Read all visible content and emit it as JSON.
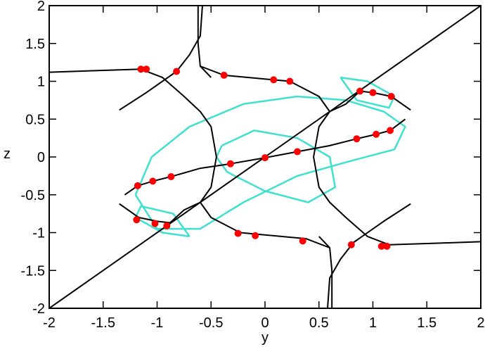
{
  "chart_data": {
    "type": "scatter",
    "x_label": "y",
    "y_label": "z",
    "xlim": [
      -2,
      2
    ],
    "ylim": [
      -2,
      2
    ],
    "xticks": [
      -2,
      -1.5,
      -1,
      -0.5,
      0,
      0.5,
      1,
      1.5,
      2
    ],
    "yticks": [
      -2,
      -1.5,
      -1,
      -0.5,
      0,
      0.5,
      1,
      1.5,
      2
    ],
    "series": [
      {
        "type": "line",
        "color": "#40e0d0",
        "x": [
          -1.2,
          -1.05,
          -0.7,
          -0.2,
          0.3,
          0.75,
          1.1,
          1.3,
          1.2,
          0.8,
          0.3,
          -0.2,
          -0.6,
          -1.0,
          -1.2,
          null,
          -0.4,
          -0.1,
          0.3,
          0.6,
          0.65,
          0.4,
          0.0,
          -0.35,
          -0.45,
          -0.4,
          null,
          0.7,
          0.95,
          1.2,
          1.15,
          0.85,
          0.7,
          null,
          -0.7,
          -0.95,
          -1.2,
          -1.15,
          -0.85,
          -0.7
        ],
        "values": [
          -0.5,
          0.0,
          0.4,
          0.7,
          0.8,
          0.75,
          0.6,
          0.4,
          0.1,
          -0.05,
          -0.25,
          -0.6,
          -0.95,
          -0.95,
          -0.5,
          null,
          0.15,
          0.35,
          0.25,
          0.0,
          -0.4,
          -0.6,
          -0.45,
          -0.2,
          0.0,
          0.15,
          null,
          1.05,
          1.0,
          0.8,
          0.65,
          0.75,
          1.05,
          null,
          -1.05,
          -1.0,
          -0.8,
          -0.65,
          -0.75,
          -1.05
        ]
      },
      {
        "type": "line",
        "color": "#000000",
        "x": [
          -2,
          2,
          null,
          -2,
          -1.6,
          -1.15,
          -0.95,
          -0.75,
          -0.6,
          -0.5,
          -0.45,
          -0.5,
          -0.6,
          null,
          -1.35,
          -1.1,
          -0.82,
          -0.7,
          -0.6,
          -0.58,
          null,
          -0.6,
          -0.38,
          0.08,
          0.23,
          0.5,
          0.6,
          0.75,
          0.88,
          1.0,
          1.17,
          1.35,
          null,
          -0.62,
          -0.62,
          -0.6,
          -0.5,
          null,
          2,
          1.6,
          1.15,
          0.95,
          0.75,
          0.6,
          0.5,
          0.45,
          0.5,
          0.6,
          null,
          1.35,
          1.1,
          0.82,
          0.7,
          0.6,
          0.58,
          null,
          0.6,
          0.38,
          -0.08,
          -0.23,
          -0.5,
          -0.6,
          -0.75,
          -0.88,
          -1.0,
          -1.17,
          -1.35,
          null,
          0.62,
          0.62,
          0.6,
          0.5,
          null,
          1.3,
          1.16,
          1.03,
          0.85,
          0.6,
          0.3,
          0.0,
          -0.32,
          -0.6,
          -0.87,
          -1.04,
          -1.18,
          -1.3
        ],
        "values": [
          -2,
          2,
          null,
          1.12,
          1.14,
          1.16,
          1.05,
          0.8,
          0.6,
          0.4,
          0.0,
          -0.4,
          -0.6,
          null,
          0.62,
          0.85,
          1.13,
          1.35,
          1.6,
          2,
          null,
          1.2,
          1.08,
          1.02,
          1.0,
          0.8,
          0.6,
          0.7,
          0.87,
          0.85,
          0.8,
          0.62,
          null,
          2,
          1.5,
          1.2,
          1.05,
          null,
          -1.12,
          -1.14,
          -1.16,
          -1.05,
          -0.8,
          -0.6,
          -0.4,
          0.0,
          0.4,
          0.6,
          null,
          -0.62,
          -0.85,
          -1.13,
          -1.35,
          -1.6,
          -2,
          null,
          -1.2,
          -1.08,
          -1.02,
          -1.0,
          -0.8,
          -0.6,
          -0.7,
          -0.87,
          -0.85,
          -0.8,
          -0.62,
          null,
          -2,
          -1.5,
          -1.2,
          -1.05,
          null,
          0.5,
          0.35,
          0.3,
          0.24,
          0.15,
          0.07,
          -0.01,
          -0.09,
          -0.15,
          -0.26,
          -0.32,
          -0.38,
          -0.5
        ]
      },
      {
        "type": "scatter",
        "color": "#ff0000",
        "x": [
          -1.15,
          -1.1,
          -0.82,
          -0.38,
          0.08,
          0.23,
          0.88,
          1.0,
          1.17,
          1.16,
          1.03,
          0.85,
          0.3,
          0.0,
          -0.32,
          -0.87,
          -1.04,
          -1.18,
          -1.19,
          -1.02,
          -0.91,
          -0.25,
          -0.09,
          0.35,
          0.8,
          1.08,
          1.13
        ],
        "values": [
          1.16,
          1.16,
          1.13,
          1.08,
          1.02,
          1.0,
          0.87,
          0.85,
          0.8,
          0.35,
          0.3,
          0.24,
          0.07,
          -0.01,
          -0.09,
          -0.26,
          -0.32,
          -0.38,
          -0.83,
          -0.88,
          -0.91,
          -1.01,
          -1.04,
          -1.11,
          -1.16,
          -1.18,
          -1.18
        ]
      }
    ]
  }
}
